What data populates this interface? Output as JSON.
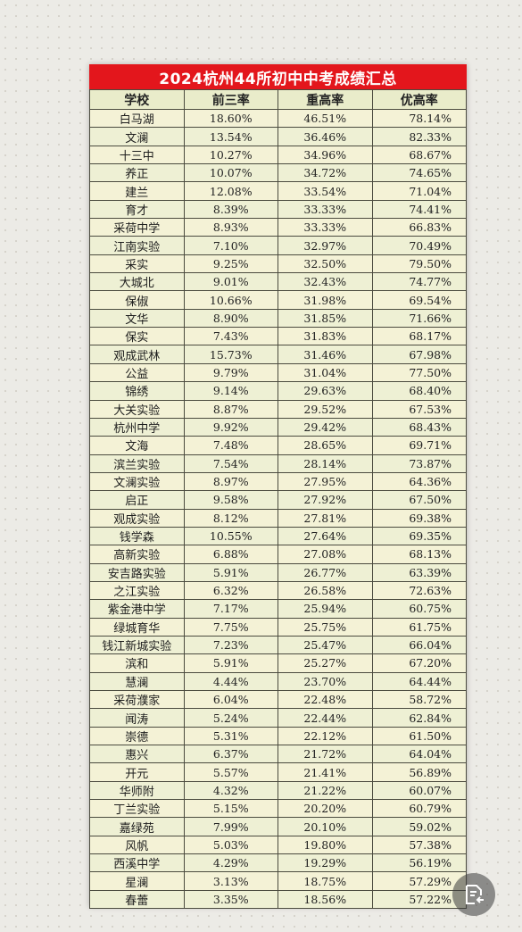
{
  "title": "2024杭州44所初中中考成绩汇总",
  "headers": [
    "学校",
    "前三率",
    "重高率",
    "优高率"
  ],
  "rows": [
    [
      "白马湖",
      "18.60%",
      "46.51%",
      "78.14%"
    ],
    [
      "文澜",
      "13.54%",
      "36.46%",
      "82.33%"
    ],
    [
      "十三中",
      "10.27%",
      "34.96%",
      "68.67%"
    ],
    [
      "养正",
      "10.07%",
      "34.72%",
      "74.65%"
    ],
    [
      "建兰",
      "12.08%",
      "33.54%",
      "71.04%"
    ],
    [
      "育才",
      "8.39%",
      "33.33%",
      "74.41%"
    ],
    [
      "采荷中学",
      "8.93%",
      "33.33%",
      "66.83%"
    ],
    [
      "江南实验",
      "7.10%",
      "32.97%",
      "70.49%"
    ],
    [
      "采实",
      "9.25%",
      "32.50%",
      "79.50%"
    ],
    [
      "大城北",
      "9.01%",
      "32.43%",
      "74.77%"
    ],
    [
      "保俶",
      "10.66%",
      "31.98%",
      "69.54%"
    ],
    [
      "文华",
      "8.90%",
      "31.85%",
      "71.66%"
    ],
    [
      "保实",
      "7.43%",
      "31.83%",
      "68.17%"
    ],
    [
      "观成武林",
      "15.73%",
      "31.46%",
      "67.98%"
    ],
    [
      "公益",
      "9.79%",
      "31.04%",
      "77.50%"
    ],
    [
      "锦绣",
      "9.14%",
      "29.63%",
      "68.40%"
    ],
    [
      "大关实验",
      "8.87%",
      "29.52%",
      "67.53%"
    ],
    [
      "杭州中学",
      "9.92%",
      "29.42%",
      "68.43%"
    ],
    [
      "文海",
      "7.48%",
      "28.65%",
      "69.71%"
    ],
    [
      "滨兰实验",
      "7.54%",
      "28.14%",
      "73.87%"
    ],
    [
      "文澜实验",
      "8.97%",
      "27.95%",
      "64.36%"
    ],
    [
      "启正",
      "9.58%",
      "27.92%",
      "67.50%"
    ],
    [
      "观成实验",
      "8.12%",
      "27.81%",
      "69.38%"
    ],
    [
      "钱学森",
      "10.55%",
      "27.64%",
      "69.35%"
    ],
    [
      "高新实验",
      "6.88%",
      "27.08%",
      "68.13%"
    ],
    [
      "安吉路实验",
      "5.91%",
      "26.77%",
      "63.39%"
    ],
    [
      "之江实验",
      "6.32%",
      "26.58%",
      "72.63%"
    ],
    [
      "紫金港中学",
      "7.17%",
      "25.94%",
      "60.75%"
    ],
    [
      "绿城育华",
      "7.75%",
      "25.75%",
      "61.75%"
    ],
    [
      "钱江新城实验",
      "7.23%",
      "25.47%",
      "66.04%"
    ],
    [
      "滨和",
      "5.91%",
      "25.27%",
      "67.20%"
    ],
    [
      "慧澜",
      "4.44%",
      "23.70%",
      "64.44%"
    ],
    [
      "采荷濮家",
      "6.04%",
      "22.48%",
      "58.72%"
    ],
    [
      "闻涛",
      "5.24%",
      "22.44%",
      "62.84%"
    ],
    [
      "崇德",
      "5.31%",
      "22.12%",
      "61.50%"
    ],
    [
      "惠兴",
      "6.37%",
      "21.72%",
      "64.04%"
    ],
    [
      "开元",
      "5.57%",
      "21.41%",
      "56.89%"
    ],
    [
      "华师附",
      "4.32%",
      "21.22%",
      "60.07%"
    ],
    [
      "丁兰实验",
      "5.15%",
      "20.20%",
      "60.79%"
    ],
    [
      "嘉绿苑",
      "7.99%",
      "20.10%",
      "59.02%"
    ],
    [
      "风帆",
      "5.03%",
      "19.80%",
      "57.38%"
    ],
    [
      "西溪中学",
      "4.29%",
      "19.29%",
      "56.19%"
    ],
    [
      "星澜",
      "3.13%",
      "18.75%",
      "57.29%"
    ],
    [
      "春蕾",
      "3.35%",
      "18.56%",
      "57.22%"
    ]
  ],
  "colors": {
    "title_bg": "#e3161c",
    "sheet_bg": "#f3f1d9",
    "grid": "#4b4b3f"
  },
  "fab_icon": "note-share-icon"
}
